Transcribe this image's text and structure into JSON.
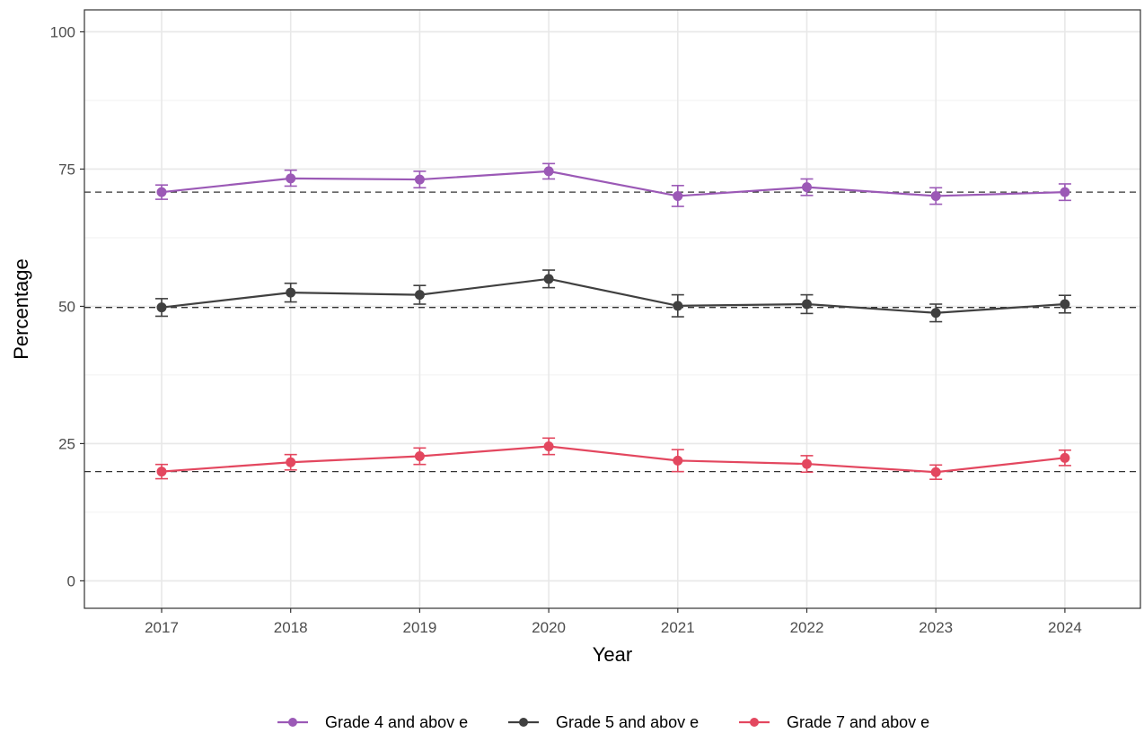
{
  "chart_data": {
    "type": "line",
    "xlabel": "Year",
    "ylabel": "Percentage",
    "x": [
      "2017",
      "2018",
      "2019",
      "2020",
      "2021",
      "2022",
      "2023",
      "2024"
    ],
    "ylim": [
      -5,
      104
    ],
    "yticks": [
      0,
      25,
      50,
      75,
      100
    ],
    "grid": true,
    "legend_position": "bottom",
    "series": [
      {
        "name": "Grade 4 and abov e",
        "color": "#9b59b6",
        "values": [
          70.8,
          73.3,
          73.1,
          74.6,
          70.1,
          71.7,
          70.1,
          70.8
        ],
        "error_low": [
          69.5,
          71.9,
          71.6,
          73.2,
          68.2,
          70.2,
          68.6,
          69.3
        ],
        "error_high": [
          72.1,
          74.8,
          74.6,
          76.0,
          72.0,
          73.2,
          71.6,
          72.3
        ],
        "reference": 70.8
      },
      {
        "name": "Grade 5 and abov e",
        "color": "#404040",
        "values": [
          49.8,
          52.5,
          52.1,
          55.0,
          50.1,
          50.4,
          48.8,
          50.4
        ],
        "error_low": [
          48.2,
          50.8,
          50.4,
          53.4,
          48.1,
          48.7,
          47.2,
          48.8
        ],
        "error_high": [
          51.4,
          54.2,
          53.8,
          56.6,
          52.1,
          52.1,
          50.4,
          52.0
        ],
        "reference": 49.8
      },
      {
        "name": "Grade 7 and abov e",
        "color": "#e3475f",
        "values": [
          19.9,
          21.6,
          22.7,
          24.5,
          21.9,
          21.3,
          19.8,
          22.4
        ],
        "error_low": [
          18.6,
          20.2,
          21.2,
          23.0,
          19.9,
          19.8,
          18.5,
          21.0
        ],
        "error_high": [
          21.2,
          23.0,
          24.2,
          26.0,
          23.9,
          22.8,
          21.1,
          23.8
        ],
        "reference": 19.9
      }
    ]
  }
}
